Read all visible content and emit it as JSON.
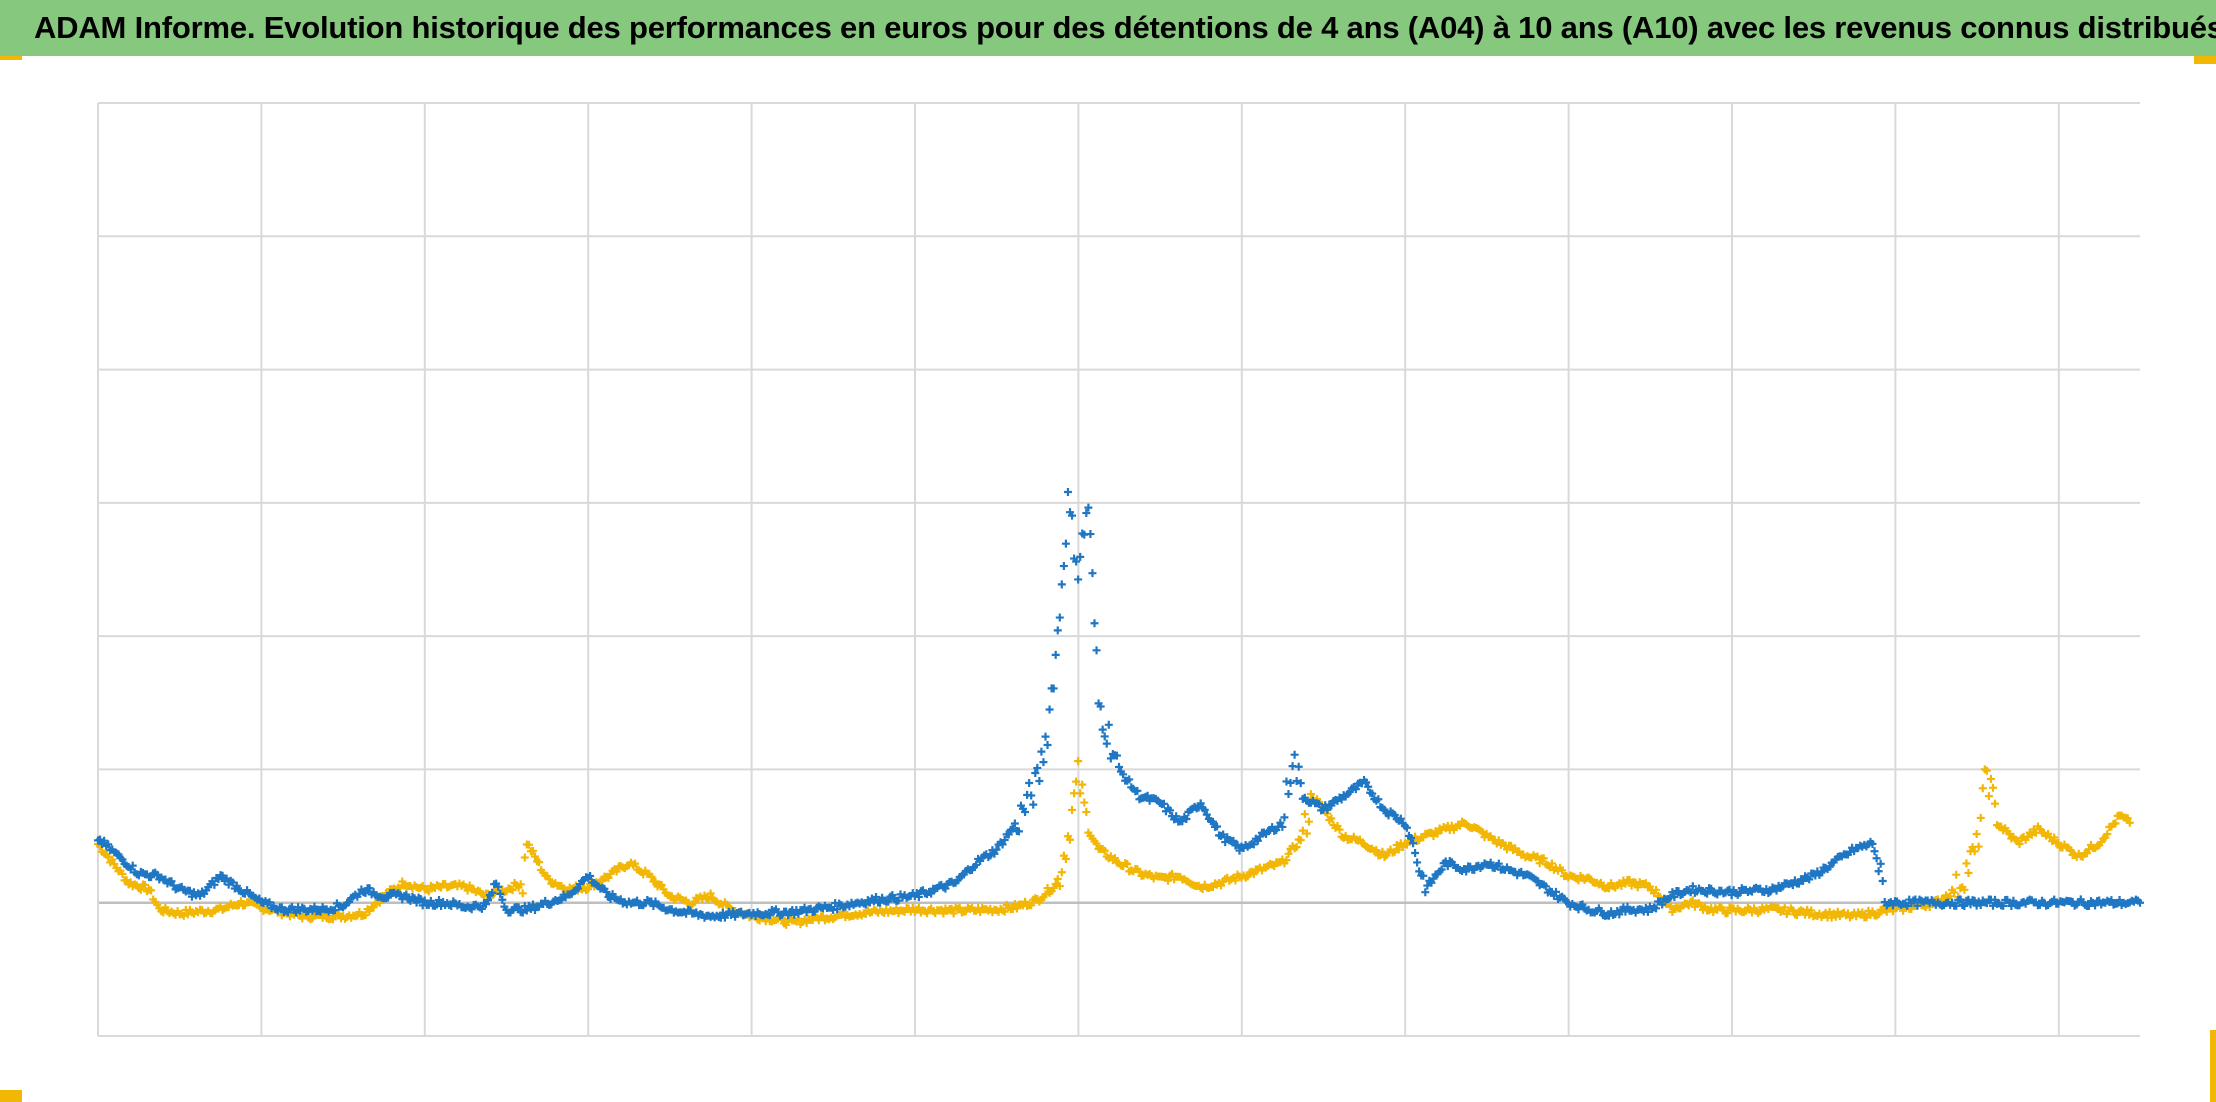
{
  "title": "ADAM Informe. Evolution historique des performances en euros pour des détentions de 4 ans (A04) à 10 ans (A10) avec les revenus connus distribués",
  "colors": {
    "header_bg": "#86c97e",
    "corner_accent": "#f2b705",
    "grid": "#d9d9d9",
    "zero_line": "#bfbfbf"
  },
  "chart_data": {
    "type": "scatter",
    "marker": "plus",
    "title": "ADAM Informe. Evolution historique des performances en euros pour des détentions de 4 ans (A04) à 10 ans (A10) avec les revenus connus distribués",
    "xlabel": "",
    "ylabel": "",
    "xlim": [
      0,
      100
    ],
    "ylim": [
      -1,
      6
    ],
    "grid": true,
    "x_gridlines": 13,
    "y_gridlines": 7,
    "tick_labels_visible": false,
    "legend": "none",
    "series": [
      {
        "color": "#f2b705",
        "points": [
          [
            0,
            0.44
          ],
          [
            1.5,
            0.15
          ],
          [
            2.5,
            0.1
          ],
          [
            3,
            -0.05
          ],
          [
            4,
            -0.08
          ],
          [
            6,
            -0.05
          ],
          [
            7,
            0.0
          ],
          [
            9,
            -0.07
          ],
          [
            10,
            -0.1
          ],
          [
            12,
            -0.1
          ],
          [
            13,
            -0.08
          ],
          [
            14,
            0.05
          ],
          [
            15,
            0.15
          ],
          [
            16,
            0.1
          ],
          [
            17,
            0.12
          ],
          [
            18,
            0.12
          ],
          [
            19,
            0.05
          ],
          [
            20,
            0.1
          ],
          [
            20.8,
            0.15
          ],
          [
            21,
            0.45
          ],
          [
            22,
            0.18
          ],
          [
            23,
            0.1
          ],
          [
            24,
            0.12
          ],
          [
            25,
            0.2
          ],
          [
            26,
            0.3
          ],
          [
            27,
            0.2
          ],
          [
            28,
            0.05
          ],
          [
            29,
            0.0
          ],
          [
            30,
            0.05
          ],
          [
            31,
            -0.05
          ],
          [
            32,
            -0.1
          ],
          [
            33,
            -0.12
          ],
          [
            34,
            -0.15
          ],
          [
            35,
            -0.12
          ],
          [
            36,
            -0.1
          ],
          [
            37,
            -0.08
          ],
          [
            38,
            -0.07
          ],
          [
            40,
            -0.05
          ],
          [
            42,
            -0.06
          ],
          [
            44,
            -0.05
          ],
          [
            45,
            -0.03
          ],
          [
            46,
            0.02
          ],
          [
            47,
            0.15
          ],
          [
            47.5,
            0.5
          ],
          [
            48,
            0.95
          ],
          [
            48.5,
            0.55
          ],
          [
            49,
            0.4
          ],
          [
            50,
            0.3
          ],
          [
            51,
            0.22
          ],
          [
            52,
            0.18
          ],
          [
            53,
            0.2
          ],
          [
            54,
            0.12
          ],
          [
            55,
            0.15
          ],
          [
            56,
            0.2
          ],
          [
            57,
            0.25
          ],
          [
            58,
            0.3
          ],
          [
            59,
            0.5
          ],
          [
            59.5,
            0.8
          ],
          [
            60,
            0.7
          ],
          [
            61,
            0.5
          ],
          [
            62,
            0.45
          ],
          [
            63,
            0.35
          ],
          [
            64,
            0.45
          ],
          [
            65,
            0.5
          ],
          [
            66,
            0.55
          ],
          [
            67,
            0.6
          ],
          [
            68,
            0.5
          ],
          [
            69,
            0.42
          ],
          [
            70,
            0.35
          ],
          [
            71,
            0.3
          ],
          [
            72,
            0.2
          ],
          [
            73,
            0.18
          ],
          [
            74,
            0.12
          ],
          [
            75,
            0.15
          ],
          [
            76,
            0.12
          ],
          [
            76.5,
            0.05
          ],
          [
            77,
            -0.05
          ],
          [
            78,
            0.0
          ],
          [
            79,
            -0.05
          ],
          [
            80,
            -0.06
          ],
          [
            82,
            -0.05
          ],
          [
            84,
            -0.08
          ],
          [
            86,
            -0.1
          ],
          [
            88,
            -0.05
          ],
          [
            90,
            0.0
          ],
          [
            91,
            0.1
          ],
          [
            92,
            0.4
          ],
          [
            92.5,
            1.0
          ],
          [
            93,
            0.6
          ],
          [
            94,
            0.45
          ],
          [
            95,
            0.55
          ],
          [
            96,
            0.45
          ],
          [
            97,
            0.35
          ],
          [
            98,
            0.45
          ],
          [
            99,
            0.65
          ],
          [
            99.5,
            0.6
          ]
        ]
      },
      {
        "color": "#1f77c4",
        "points": [
          [
            0,
            0.48
          ],
          [
            1,
            0.35
          ],
          [
            2,
            0.22
          ],
          [
            3,
            0.2
          ],
          [
            4,
            0.1
          ],
          [
            5,
            0.05
          ],
          [
            6,
            0.2
          ],
          [
            7,
            0.1
          ],
          [
            8,
            0.0
          ],
          [
            9,
            -0.05
          ],
          [
            10,
            -0.05
          ],
          [
            11,
            -0.05
          ],
          [
            12,
            -0.02
          ],
          [
            13,
            0.1
          ],
          [
            14,
            0.05
          ],
          [
            15,
            0.05
          ],
          [
            16,
            0.0
          ],
          [
            17,
            0.0
          ],
          [
            18,
            -0.03
          ],
          [
            19,
            -0.02
          ],
          [
            19.5,
            0.15
          ],
          [
            20,
            -0.05
          ],
          [
            21,
            -0.05
          ],
          [
            22,
            0.0
          ],
          [
            23,
            0.05
          ],
          [
            24,
            0.2
          ],
          [
            25,
            0.05
          ],
          [
            26,
            0.0
          ],
          [
            27,
            0.0
          ],
          [
            28,
            -0.05
          ],
          [
            29,
            -0.08
          ],
          [
            30,
            -0.1
          ],
          [
            32,
            -0.08
          ],
          [
            34,
            -0.07
          ],
          [
            36,
            -0.03
          ],
          [
            38,
            0.02
          ],
          [
            40,
            0.05
          ],
          [
            41,
            0.1
          ],
          [
            42,
            0.15
          ],
          [
            43,
            0.3
          ],
          [
            44,
            0.4
          ],
          [
            45,
            0.6
          ],
          [
            46,
            0.9
          ],
          [
            46.5,
            1.3
          ],
          [
            47,
            2.0
          ],
          [
            47.5,
            3.0
          ],
          [
            48,
            2.5
          ],
          [
            48.5,
            3.0
          ],
          [
            49,
            1.5
          ],
          [
            50,
            1.0
          ],
          [
            51,
            0.8
          ],
          [
            52,
            0.75
          ],
          [
            53,
            0.6
          ],
          [
            54,
            0.75
          ],
          [
            55,
            0.5
          ],
          [
            56,
            0.4
          ],
          [
            57,
            0.5
          ],
          [
            58,
            0.6
          ],
          [
            58.5,
            1.1
          ],
          [
            59,
            0.8
          ],
          [
            60,
            0.7
          ],
          [
            61,
            0.8
          ],
          [
            62,
            0.9
          ],
          [
            63,
            0.7
          ],
          [
            64,
            0.6
          ],
          [
            64.5,
            0.4
          ],
          [
            65,
            0.1
          ],
          [
            66,
            0.3
          ],
          [
            67,
            0.25
          ],
          [
            68,
            0.3
          ],
          [
            69,
            0.25
          ],
          [
            70,
            0.2
          ],
          [
            71,
            0.1
          ],
          [
            72,
            0.0
          ],
          [
            73,
            -0.05
          ],
          [
            74,
            -0.08
          ],
          [
            75,
            -0.05
          ],
          [
            76,
            -0.05
          ],
          [
            77,
            0.05
          ],
          [
            78,
            0.1
          ],
          [
            80,
            0.08
          ],
          [
            82,
            0.1
          ],
          [
            84,
            0.2
          ],
          [
            85,
            0.3
          ],
          [
            86,
            0.4
          ],
          [
            87,
            0.45
          ],
          [
            87.5,
            0.0
          ],
          [
            90,
            0.0
          ],
          [
            95,
            0.0
          ],
          [
            100,
            0.0
          ]
        ]
      }
    ]
  }
}
